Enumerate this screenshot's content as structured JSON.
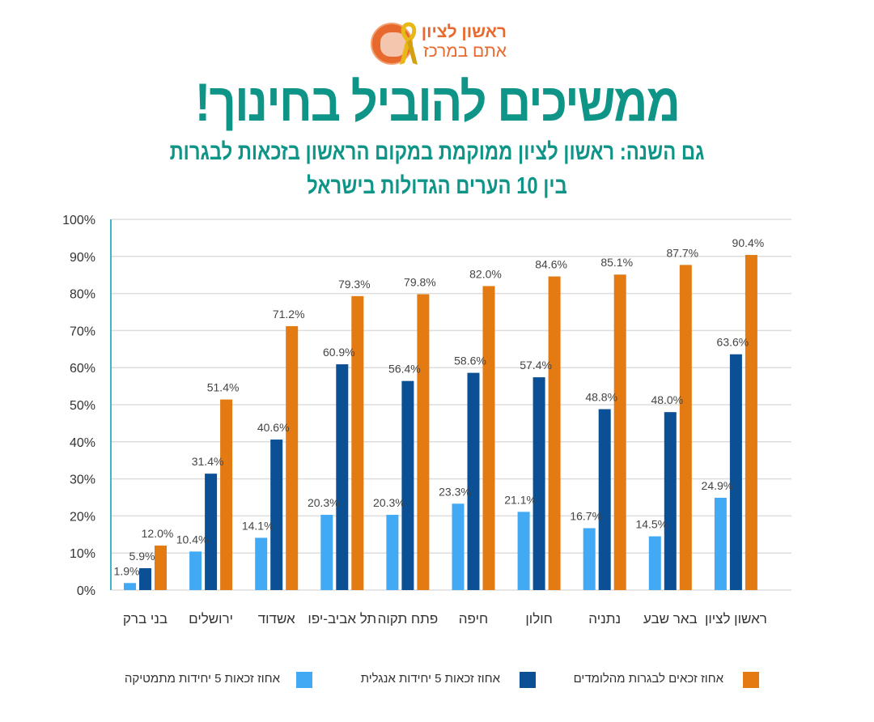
{
  "logo": {
    "line1": "ראשון לציון",
    "line2": "אתם במרכז",
    "icon": "yellow-ribbon-icon"
  },
  "title": "ממשיכים להוביל בחינוך!",
  "subtitle_line1": "גם השנה: ראשון לציון ממוקמת במקום הראשון בזכאות לבגרות",
  "subtitle_line2": "בין 10 הערים הגדולות בישראל",
  "colors": {
    "title": "#0f9488",
    "logo": "#e8692e",
    "math": "#42aaf5",
    "english": "#0b4f94",
    "bagrut": "#e47a12",
    "grid": "#dddddd",
    "axis": "#3fb5c8"
  },
  "chart_data": {
    "type": "bar",
    "title": "ממשיכים להוביל בחינוך!",
    "xlabel": "",
    "ylabel": "",
    "ylim": [
      0,
      100
    ],
    "yticks": [
      "0%",
      "10%",
      "20%",
      "30%",
      "40%",
      "50%",
      "60%",
      "70%",
      "80%",
      "90%",
      "100%"
    ],
    "grid": true,
    "legend_position": "bottom",
    "categories": [
      "בני ברק",
      "ירושלים",
      "אשדוד",
      "תל אביב-יפו",
      "פתח תקוה",
      "חיפה",
      "חולון",
      "נתניה",
      "באר שבע",
      "ראשון לציון"
    ],
    "series": [
      {
        "name": "אחוז זכאות 5 יחידות מתמטיקה",
        "color": "#42aaf5",
        "values": [
          1.9,
          10.4,
          14.1,
          20.3,
          20.3,
          23.3,
          21.1,
          16.7,
          14.5,
          24.9
        ]
      },
      {
        "name": "אחוז זכאות 5 יחידות אנגלית",
        "color": "#0b4f94",
        "values": [
          5.9,
          31.4,
          40.6,
          60.9,
          56.4,
          58.6,
          57.4,
          48.8,
          48.0,
          63.6
        ]
      },
      {
        "name": "אחוז זכאים לבגרות מהלומדים",
        "color": "#e47a12",
        "values": [
          12.0,
          51.4,
          71.2,
          79.3,
          79.8,
          82.0,
          84.6,
          85.1,
          87.7,
          90.4
        ]
      }
    ]
  }
}
